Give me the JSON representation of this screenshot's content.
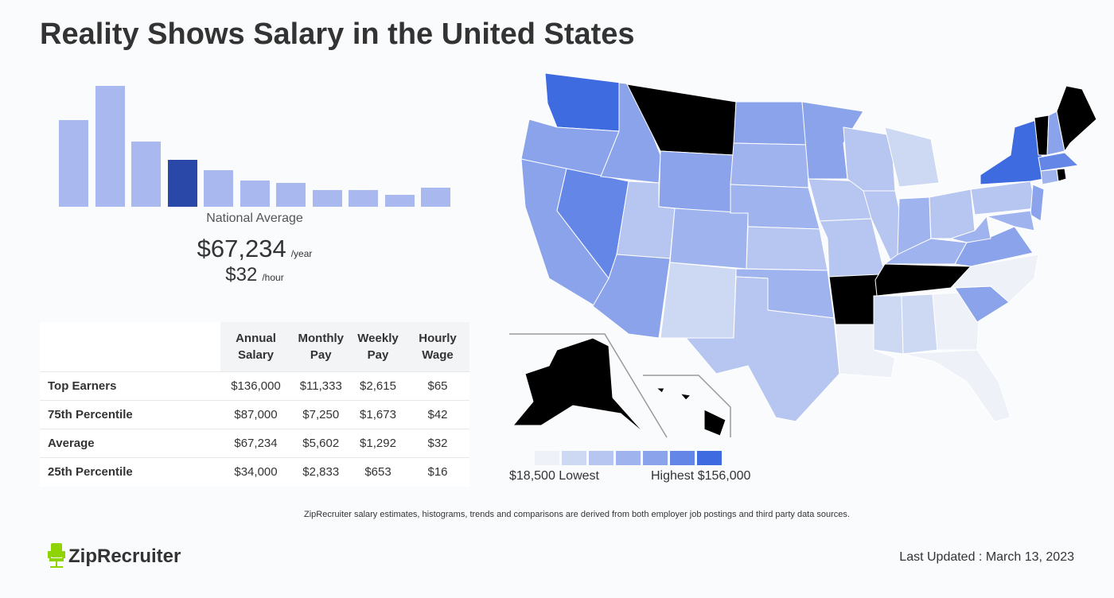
{
  "title": "Reality Shows Salary in the United States",
  "histogram": {
    "levels": [
      0.72,
      1.0,
      0.54,
      0.39,
      0.3,
      0.22,
      0.2,
      0.14,
      0.14,
      0.1,
      0.16
    ],
    "selected_index": 3,
    "bar_color": "#a9b9f0",
    "selected_color": "#2a48a8"
  },
  "national": {
    "label": "National Average",
    "annual": "$67,234",
    "annual_unit": "/year",
    "hourly": "$32",
    "hourly_unit": "/hour"
  },
  "table": {
    "headers": [
      "",
      "Annual Salary",
      "Monthly Pay",
      "Weekly Pay",
      "Hourly Wage"
    ],
    "rows": [
      {
        "label": "Top Earners",
        "values": [
          "$136,000",
          "$11,333",
          "$2,615",
          "$65"
        ]
      },
      {
        "label": "75th Percentile",
        "values": [
          "$87,000",
          "$7,250",
          "$1,673",
          "$42"
        ]
      },
      {
        "label": "Average",
        "values": [
          "$67,234",
          "$5,602",
          "$1,292",
          "$32"
        ]
      },
      {
        "label": "25th Percentile",
        "values": [
          "$34,000",
          "$2,833",
          "$653",
          "$16"
        ]
      }
    ]
  },
  "legend": {
    "colors": [
      "#eef1f8",
      "#cdd8f3",
      "#b6c6f1",
      "#9fb3ee",
      "#8aa3ea",
      "#6486e6",
      "#3f6be0"
    ],
    "lowest": "$18,500 Lowest",
    "highest": "Highest $156,000"
  },
  "note": "ZipRecruiter salary estimates, histograms, trends and comparisons are derived from both employer job postings and third party data sources.",
  "brand": {
    "name": "ZipRecruiter",
    "color": "#8fd400"
  },
  "updated": "Last Updated : March 13, 2023"
}
